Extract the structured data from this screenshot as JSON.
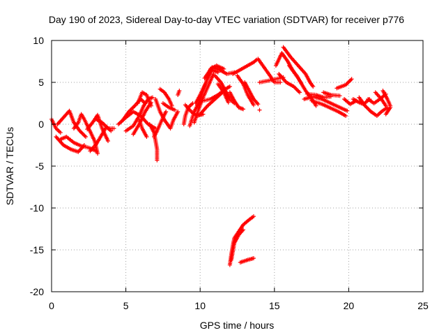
{
  "chart_data": {
    "type": "scatter",
    "title": "Day 190 of 2023, Sidereal Day-to-day VTEC variation (SDTVAR) for receiver p776",
    "xlabel": "GPS time / hours",
    "ylabel": "SDTVAR / TECUs",
    "xlim": [
      0,
      25
    ],
    "ylim": [
      -20,
      10
    ],
    "xticks": [
      0,
      5,
      10,
      15,
      20,
      25
    ],
    "yticks": [
      -20,
      -15,
      -10,
      -5,
      0,
      5,
      10
    ],
    "grid": true,
    "marker": "+",
    "color": "#ff0000",
    "series": [
      {
        "name": "tracks",
        "tracks": [
          [
            [
              0.0,
              0.6
            ],
            [
              0.3,
              -0.5
            ],
            [
              0.6,
              -1.0
            ]
          ],
          [
            [
              0.3,
              -1.5
            ],
            [
              0.8,
              -2.5
            ],
            [
              1.3,
              -3.0
            ],
            [
              1.8,
              -3.3
            ],
            [
              2.2,
              -2.5
            ]
          ],
          [
            [
              0.4,
              0.0
            ],
            [
              0.9,
              1.0
            ],
            [
              1.2,
              1.6
            ],
            [
              1.5,
              0.2
            ],
            [
              1.9,
              -0.8
            ],
            [
              2.3,
              -1.5
            ]
          ],
          [
            [
              0.6,
              -1.8
            ],
            [
              1.0,
              -1.5
            ],
            [
              1.5,
              -2.2
            ],
            [
              2.0,
              -2.6
            ],
            [
              2.5,
              -2.8
            ],
            [
              3.0,
              -3.2
            ]
          ],
          [
            [
              1.5,
              -0.5
            ],
            [
              1.8,
              0.2
            ],
            [
              2.0,
              1.2
            ],
            [
              2.2,
              0.6
            ],
            [
              2.5,
              -0.5
            ],
            [
              2.9,
              -2.0
            ],
            [
              3.1,
              -3.5
            ]
          ],
          [
            [
              2.4,
              -0.6
            ],
            [
              2.8,
              0.3
            ],
            [
              3.1,
              1.1
            ],
            [
              3.4,
              -0.5
            ],
            [
              3.8,
              -2.0
            ]
          ],
          [
            [
              2.6,
              -3.2
            ],
            [
              3.0,
              -2.4
            ],
            [
              3.4,
              -1.2
            ],
            [
              3.7,
              -0.3
            ],
            [
              4.0,
              -0.8
            ]
          ],
          [
            [
              3.0,
              0.6
            ],
            [
              3.4,
              0.2
            ],
            [
              3.8,
              -0.5
            ],
            [
              4.2,
              -0.5
            ]
          ],
          [
            [
              4.5,
              0.0
            ],
            [
              5.0,
              0.8
            ],
            [
              5.5,
              1.5
            ],
            [
              6.0,
              1.0
            ],
            [
              6.5,
              0.0
            ],
            [
              7.0,
              -0.5
            ]
          ],
          [
            [
              4.8,
              0.5
            ],
            [
              5.2,
              1.5
            ],
            [
              5.6,
              2.2
            ],
            [
              6.0,
              3.0
            ],
            [
              6.3,
              2.5
            ]
          ],
          [
            [
              5.0,
              -0.8
            ],
            [
              5.5,
              -0.2
            ],
            [
              5.9,
              1.0
            ],
            [
              6.2,
              2.2
            ],
            [
              6.5,
              3.0
            ],
            [
              6.8,
              3.2
            ]
          ],
          [
            [
              5.5,
              -1.2
            ],
            [
              5.9,
              0.0
            ],
            [
              6.3,
              1.5
            ],
            [
              6.7,
              2.6
            ]
          ],
          [
            [
              5.8,
              2.5
            ],
            [
              6.1,
              3.8
            ],
            [
              6.4,
              3.5
            ],
            [
              6.7,
              2.2
            ]
          ],
          [
            [
              5.9,
              0.5
            ],
            [
              6.1,
              -0.5
            ],
            [
              6.4,
              -1.5
            ]
          ],
          [
            [
              6.6,
              0.0
            ],
            [
              6.9,
              -1.0
            ],
            [
              7.0,
              -2.0
            ],
            [
              7.1,
              -3.0
            ],
            [
              7.1,
              -4.3
            ]
          ],
          [
            [
              6.9,
              -1.5
            ],
            [
              7.1,
              -0.8
            ],
            [
              7.3,
              0.0
            ],
            [
              7.5,
              0.8
            ],
            [
              7.7,
              1.5
            ]
          ],
          [
            [
              7.0,
              3.0
            ],
            [
              7.3,
              1.5
            ],
            [
              7.6,
              0.5
            ],
            [
              8.0,
              -0.5
            ],
            [
              8.2,
              0.5
            ],
            [
              8.5,
              1.5
            ]
          ],
          [
            [
              7.3,
              4.2
            ],
            [
              7.6,
              3.8
            ],
            [
              7.9,
              3.0
            ],
            [
              8.1,
              2.2
            ]
          ],
          [
            [
              7.5,
              2.5
            ],
            [
              7.9,
              2.0
            ],
            [
              8.3,
              1.7
            ]
          ],
          [
            [
              8.5,
              3.5
            ],
            [
              8.6,
              4.0
            ]
          ],
          [
            [
              8.9,
              0.0
            ],
            [
              9.0,
              1.0
            ],
            [
              9.2,
              2.0
            ],
            [
              9.5,
              2.5
            ]
          ],
          [
            [
              9.0,
              2.3
            ],
            [
              9.4,
              1.5
            ],
            [
              9.8,
              1.0
            ],
            [
              10.2,
              1.2
            ]
          ],
          [
            [
              9.3,
              -0.2
            ],
            [
              9.6,
              1.5
            ],
            [
              9.9,
              2.5
            ],
            [
              10.2,
              4.0
            ],
            [
              10.5,
              5.5
            ],
            [
              10.8,
              6.5
            ],
            [
              11.2,
              6.2
            ]
          ],
          [
            [
              9.6,
              0.2
            ],
            [
              9.9,
              1.8
            ],
            [
              10.2,
              3.2
            ],
            [
              10.6,
              4.8
            ],
            [
              10.9,
              6.0
            ]
          ],
          [
            [
              9.7,
              2.5
            ],
            [
              10.0,
              3.5
            ],
            [
              10.4,
              5.0
            ],
            [
              10.7,
              6.6
            ],
            [
              11.1,
              7.0
            ],
            [
              11.6,
              6.6
            ]
          ],
          [
            [
              10.0,
              1.2
            ],
            [
              10.5,
              2.2
            ],
            [
              11.0,
              3.0
            ],
            [
              11.5,
              3.8
            ]
          ],
          [
            [
              10.2,
              2.8
            ],
            [
              10.7,
              3.0
            ],
            [
              11.2,
              3.5
            ],
            [
              11.7,
              4.2
            ],
            [
              12.0,
              4.5
            ]
          ],
          [
            [
              10.3,
              5.5
            ],
            [
              10.8,
              6.8
            ],
            [
              11.3,
              6.5
            ],
            [
              11.8,
              6.0
            ],
            [
              12.3,
              6.2
            ]
          ],
          [
            [
              11.0,
              5.8
            ],
            [
              11.4,
              5.0
            ],
            [
              11.7,
              4.0
            ],
            [
              12.0,
              3.0
            ],
            [
              12.3,
              2.5
            ]
          ],
          [
            [
              11.2,
              4.8
            ],
            [
              11.6,
              3.8
            ],
            [
              11.9,
              2.6
            ]
          ],
          [
            [
              12.0,
              3.8
            ],
            [
              12.3,
              2.8
            ],
            [
              12.6,
              2.0
            ],
            [
              12.9,
              1.8
            ]
          ],
          [
            [
              12.2,
              6.0
            ],
            [
              12.7,
              6.5
            ],
            [
              13.2,
              7.0
            ],
            [
              13.6,
              7.4
            ],
            [
              13.8,
              7.7
            ]
          ],
          [
            [
              12.5,
              5.8
            ],
            [
              12.9,
              4.8
            ],
            [
              13.2,
              3.5
            ],
            [
              13.6,
              2.3
            ]
          ],
          [
            [
              13.0,
              5.0
            ],
            [
              13.3,
              4.0
            ],
            [
              13.6,
              3.0
            ],
            [
              13.9,
              2.4
            ]
          ],
          [
            [
              14.0,
              1.7
            ]
          ],
          [
            [
              13.9,
              7.8
            ],
            [
              14.3,
              6.8
            ],
            [
              14.7,
              5.8
            ],
            [
              15.0,
              5.0
            ],
            [
              15.4,
              5.0
            ]
          ],
          [
            [
              14.0,
              5.0
            ],
            [
              14.6,
              5.2
            ],
            [
              15.1,
              5.4
            ],
            [
              15.6,
              5.6
            ]
          ],
          [
            [
              15.1,
              7.0
            ],
            [
              15.5,
              8.5
            ],
            [
              15.9,
              7.5
            ],
            [
              16.2,
              6.5
            ],
            [
              16.5,
              5.8
            ],
            [
              16.8,
              4.9
            ]
          ],
          [
            [
              15.3,
              6.0
            ],
            [
              15.8,
              5.0
            ],
            [
              16.3,
              4.5
            ],
            [
              16.7,
              3.8
            ]
          ],
          [
            [
              15.6,
              9.2
            ],
            [
              16.1,
              8.0
            ],
            [
              16.6,
              7.0
            ],
            [
              17.1,
              6.0
            ],
            [
              17.4,
              5.0
            ],
            [
              17.6,
              4.5
            ]
          ],
          [
            [
              16.0,
              7.0
            ],
            [
              16.6,
              5.5
            ],
            [
              17.1,
              4.0
            ],
            [
              17.6,
              2.8
            ],
            [
              17.8,
              2.2
            ]
          ],
          [
            [
              17.0,
              3.0
            ],
            [
              17.6,
              3.3
            ],
            [
              18.2,
              3.0
            ],
            [
              18.8,
              2.5
            ],
            [
              19.4,
              2.0
            ],
            [
              19.9,
              1.6
            ]
          ],
          [
            [
              17.2,
              3.6
            ],
            [
              17.8,
              3.5
            ],
            [
              18.3,
              3.2
            ],
            [
              18.8,
              3.3
            ]
          ],
          [
            [
              17.5,
              2.8
            ],
            [
              18.2,
              2.4
            ],
            [
              18.7,
              2.0
            ],
            [
              19.3,
              1.5
            ],
            [
              19.8,
              1.0
            ]
          ],
          [
            [
              18.3,
              3.8
            ],
            [
              18.8,
              3.5
            ],
            [
              19.4,
              3.4
            ]
          ],
          [
            [
              19.2,
              4.3
            ],
            [
              19.8,
              4.7
            ],
            [
              20.2,
              5.4
            ]
          ],
          [
            [
              19.7,
              3.0
            ],
            [
              20.1,
              2.4
            ],
            [
              20.5,
              2.8
            ]
          ],
          [
            [
              20.3,
              3.0
            ],
            [
              20.7,
              2.6
            ],
            [
              21.0,
              2.4
            ],
            [
              21.4,
              3.0
            ]
          ],
          [
            [
              20.7,
              3.2
            ],
            [
              21.1,
              2.2
            ],
            [
              21.5,
              1.5
            ]
          ],
          [
            [
              21.3,
              3.0
            ],
            [
              21.7,
              2.5
            ],
            [
              22.1,
              3.0
            ],
            [
              22.5,
              3.6
            ]
          ],
          [
            [
              21.5,
              1.5
            ],
            [
              21.9,
              1.0
            ],
            [
              22.2,
              1.5
            ],
            [
              22.6,
              2.0
            ]
          ],
          [
            [
              21.8,
              3.8
            ],
            [
              22.2,
              3.0
            ],
            [
              22.5,
              2.2
            ]
          ],
          [
            [
              22.3,
              4.0
            ],
            [
              22.6,
              3.0
            ],
            [
              22.8,
              2.2
            ]
          ],
          [
            [
              22.5,
              1.2
            ],
            [
              22.8,
              2.0
            ]
          ],
          [
            [
              12.0,
              -16.8
            ],
            [
              12.1,
              -15.5
            ],
            [
              12.2,
              -14.5
            ],
            [
              12.3,
              -13.6
            ],
            [
              12.6,
              -12.8
            ],
            [
              12.9,
              -12.0
            ],
            [
              13.3,
              -11.4
            ],
            [
              13.6,
              -11.0
            ]
          ],
          [
            [
              12.1,
              -16.2
            ],
            [
              12.3,
              -14.2
            ],
            [
              12.6,
              -13.2
            ],
            [
              12.9,
              -12.6
            ]
          ],
          [
            [
              12.7,
              -16.5
            ],
            [
              13.2,
              -16.2
            ],
            [
              13.6,
              -16.0
            ]
          ]
        ]
      }
    ]
  }
}
